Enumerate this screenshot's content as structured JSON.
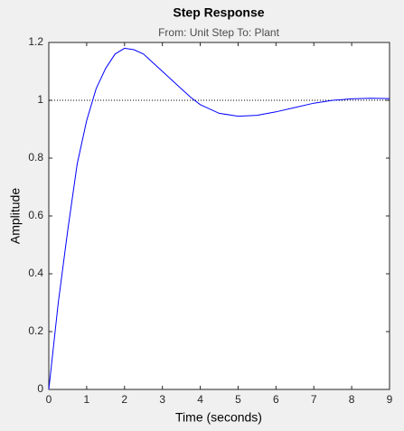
{
  "chart_data": {
    "type": "line",
    "title": "Step Response",
    "subtitle": "From: Unit Step  To: Plant",
    "xlabel": "Time (seconds)",
    "ylabel": "Amplitude",
    "x": [
      0,
      0.25,
      0.5,
      0.75,
      1,
      1.25,
      1.5,
      1.75,
      2,
      2.25,
      2.5,
      2.75,
      3,
      3.25,
      3.5,
      3.75,
      4,
      4.5,
      5,
      5.5,
      6,
      6.5,
      7,
      7.5,
      8,
      8.5,
      9
    ],
    "series": [
      {
        "name": "Plant",
        "color": "#0000ff",
        "values": [
          0,
          0.3,
          0.55,
          0.78,
          0.93,
          1.04,
          1.11,
          1.16,
          1.18,
          1.175,
          1.16,
          1.13,
          1.1,
          1.07,
          1.04,
          1.01,
          0.985,
          0.955,
          0.945,
          0.948,
          0.96,
          0.975,
          0.99,
          1.0,
          1.005,
          1.007,
          1.006
        ]
      }
    ],
    "reference_line": 1,
    "xlim": [
      0,
      9
    ],
    "ylim": [
      0,
      1.2
    ],
    "xticks": [
      0,
      1,
      2,
      3,
      4,
      5,
      6,
      7,
      8,
      9
    ],
    "yticks": [
      0,
      0.2,
      0.4,
      0.6,
      0.8,
      1,
      1.2
    ]
  }
}
